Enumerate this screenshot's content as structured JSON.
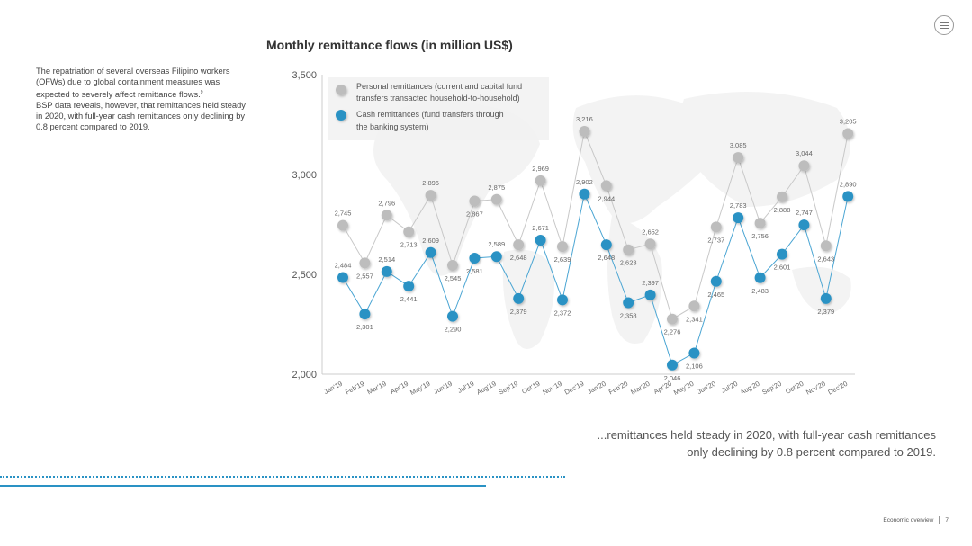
{
  "intro": {
    "line1": "The repatriation of several overseas Filipino workers (OFWs) due to global containment measures was expected to severely affect remittance flows.",
    "footnote_mark": "9",
    "line2": "BSP data reveals, however, that remittances held steady in 2020, with full-year cash remittances only declining by 0.8 percent compared to 2019."
  },
  "callout": "...remittances held steady in 2020, with full-year cash remittances only declining by 0.8 percent compared to 2019.",
  "footer": {
    "section": "Economic overview",
    "page": "7"
  },
  "colors": {
    "personal": "#bdbdbd",
    "cash": "#2a92c4",
    "cash_line": "#4aa5d3",
    "personal_line": "#c8c8c8",
    "axis": "#cccccc",
    "accent": "#2a92c4"
  },
  "icons": {
    "menu": "hamburger-menu-icon"
  },
  "chart_data": {
    "type": "line",
    "title": "Monthly remittance flows (in million US$)",
    "xlabel": "",
    "ylabel": "",
    "ylim": [
      2000,
      3500
    ],
    "yticks": [
      "2,000",
      "2,500",
      "3,000",
      "3,500"
    ],
    "ytick_values": [
      2000,
      2500,
      3000,
      3500
    ],
    "legend_position": "top-left",
    "grid": false,
    "categories": [
      "Jan'19",
      "Feb'19",
      "Mar'19",
      "Apr'19",
      "May'19",
      "Jun'19",
      "Jul'19",
      "Aug'19",
      "Sep'19",
      "Oct'19",
      "Nov'19",
      "Dec'19",
      "Jan'20",
      "Feb'20",
      "Mar'20",
      "Apr'20",
      "May'20",
      "Jun'20",
      "Jul'20",
      "Aug'20",
      "Sep'20",
      "Oct'20",
      "Nov'20",
      "Dec'20"
    ],
    "series": [
      {
        "name": "Personal remittances (current and capital fund transfers transacted household-to-household)",
        "legend_line1": "Personal remittances (current and capital fund",
        "legend_line2": "transfers transacted household-to-household)",
        "values": [
          2745,
          2557,
          2796,
          2713,
          2896,
          2545,
          2867,
          2875,
          2648,
          2969,
          2639,
          3216,
          2944,
          2623,
          2652,
          2276,
          2341,
          2737,
          3085,
          2756,
          2888,
          3044,
          2643,
          3205
        ],
        "labels": [
          "2,745",
          "2,557",
          "2,796",
          "2,713",
          "2,896",
          "2,545",
          "2,867",
          "2,875",
          "2,648",
          "2,969",
          "2,639",
          "3,216",
          "2,944",
          "2,623",
          "2,652",
          "2,276",
          "2,341",
          "2,737",
          "3,085",
          "2,756",
          "2,888",
          "3,044",
          "2,643",
          "3,205"
        ]
      },
      {
        "name": "Cash remittances (fund transfers through the banking system)",
        "legend_line1": "Cash remittances (fund transfers through",
        "legend_line2": "the banking system)",
        "values": [
          2484,
          2301,
          2514,
          2441,
          2609,
          2290,
          2581,
          2589,
          2379,
          2671,
          2372,
          2902,
          2648,
          2358,
          2397,
          2046,
          2106,
          2465,
          2783,
          2483,
          2601,
          2747,
          2379,
          2890
        ],
        "labels": [
          "2,484",
          "2,301",
          "2,514",
          "2,441",
          "2,609",
          "2,290",
          "2,581",
          "2,589",
          "2,379",
          "2,671",
          "2,372",
          "2,902",
          "2,648",
          "2,358",
          "2,397",
          "2,046",
          "2,106",
          "2,465",
          "2,783",
          "2,483",
          "2,601",
          "2,747",
          "2,379",
          "2,890"
        ]
      }
    ]
  }
}
